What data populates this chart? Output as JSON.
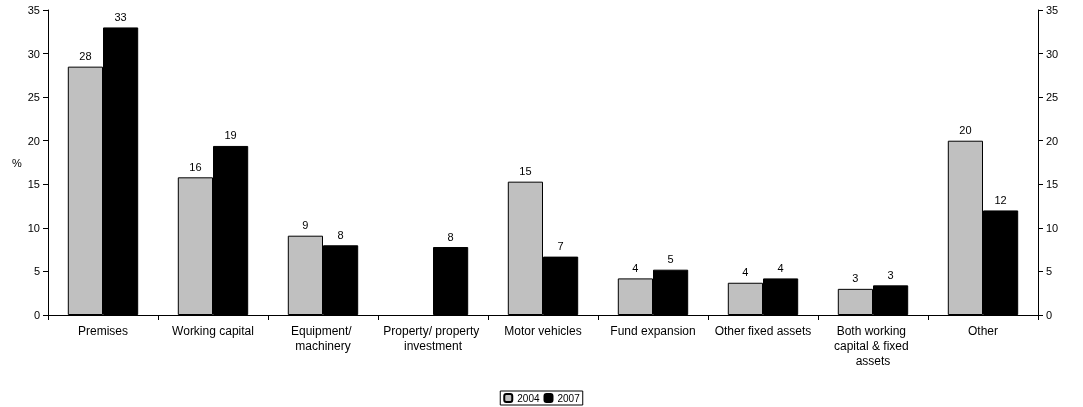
{
  "chart_data": {
    "type": "bar",
    "ylabel": "%",
    "categories": [
      "Premises",
      "Working capital",
      "Equipment/ machinery",
      "Property/ property investment",
      "Motor vehicles",
      "Fund expansion",
      "Other fixed assets",
      "Both working capital & fixed assets",
      "Other"
    ],
    "series": [
      {
        "name": "2004",
        "color": "#c0c0c0",
        "values": [
          28.5,
          15.8,
          9.1,
          null,
          15.3,
          4.2,
          3.7,
          3.0,
          20.0
        ],
        "value_labels": [
          "28",
          "16",
          "9",
          null,
          "15",
          "4",
          "4",
          "3",
          "20"
        ]
      },
      {
        "name": "2007",
        "color": "#000000",
        "values": [
          33.0,
          19.4,
          8.0,
          7.8,
          6.7,
          5.2,
          4.2,
          3.4,
          12.0
        ],
        "value_labels": [
          "33",
          "19",
          "8",
          "8",
          "7",
          "5",
          "4",
          "3",
          "12"
        ]
      }
    ],
    "ylim": [
      0,
      35
    ],
    "yticks": [
      0,
      5,
      10,
      15,
      20,
      25,
      30,
      35
    ],
    "y2lim": [
      0,
      35
    ],
    "y2ticks": [
      0,
      5,
      10,
      15,
      20,
      25,
      30,
      35
    ],
    "grid": false,
    "legend": "bottom"
  }
}
